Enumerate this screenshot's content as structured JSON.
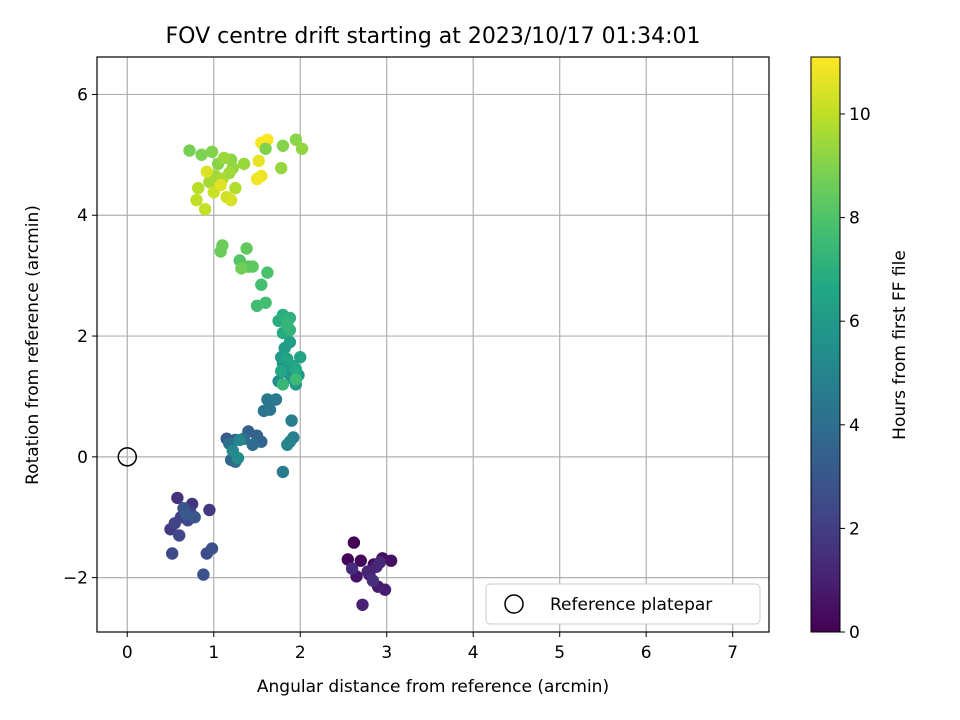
{
  "chart_data": {
    "type": "scatter",
    "title": "FOV centre drift starting at 2023/10/17 01:34:01",
    "xlabel": "Angular distance from reference (arcmin)",
    "ylabel": "Rotation from reference (arcmin)",
    "xlim": [
      -0.35,
      7.42
    ],
    "ylim": [
      -2.9,
      6.62
    ],
    "xticks": [
      0,
      1,
      2,
      3,
      4,
      5,
      6,
      7
    ],
    "xtick_labels": [
      "0",
      "1",
      "2",
      "3",
      "4",
      "5",
      "6",
      "7"
    ],
    "yticks": [
      -2,
      0,
      2,
      4,
      6
    ],
    "ytick_labels": [
      "−2",
      "0",
      "2",
      "4",
      "6"
    ],
    "grid": true,
    "colormap": "viridis",
    "colorbar": {
      "label": "Hours from first FF file",
      "range": [
        0,
        11.1
      ],
      "ticks": [
        0,
        2,
        4,
        6,
        8,
        10
      ],
      "tick_labels": [
        "0",
        "2",
        "4",
        "6",
        "8",
        "10"
      ]
    },
    "legend": {
      "position": "lower-right",
      "entries": [
        "Reference platepar"
      ]
    },
    "reference_point": {
      "x": 0,
      "y": 0,
      "label": "Reference platepar"
    },
    "series": [
      {
        "points": [
          [
            2.62,
            -1.42
          ],
          [
            2.55,
            -1.7
          ],
          [
            2.7,
            -1.72
          ],
          [
            2.85,
            -1.78
          ],
          [
            2.95,
            -1.68
          ],
          [
            3.05,
            -1.72
          ],
          [
            2.65,
            -1.98
          ],
          [
            2.8,
            -1.95
          ],
          [
            2.9,
            -2.15
          ],
          [
            2.98,
            -2.2
          ],
          [
            2.72,
            -2.45
          ],
          [
            2.88,
            -1.82
          ],
          [
            2.78,
            -1.9
          ],
          [
            2.92,
            -1.75
          ],
          [
            2.6,
            -1.85
          ],
          [
            2.84,
            -2.05
          ]
        ],
        "hours": [
          0.0,
          0.1,
          0.2,
          0.3,
          0.4,
          0.5,
          0.6,
          0.7,
          0.8,
          0.9,
          1.0,
          1.1,
          1.2,
          1.3,
          1.4,
          1.5
        ]
      },
      {
        "points": [
          [
            0.58,
            -0.68
          ],
          [
            0.75,
            -0.78
          ],
          [
            0.95,
            -0.88
          ],
          [
            0.5,
            -1.2
          ],
          [
            0.62,
            -1.0
          ],
          [
            0.73,
            -0.92
          ],
          [
            0.55,
            -1.1
          ],
          [
            0.6,
            -1.3
          ],
          [
            0.7,
            -1.05
          ],
          [
            0.52,
            -1.6
          ],
          [
            0.92,
            -1.6
          ],
          [
            0.98,
            -1.52
          ],
          [
            0.88,
            -1.95
          ],
          [
            0.65,
            -0.85
          ],
          [
            0.78,
            -1.0
          ],
          [
            0.68,
            -0.95
          ]
        ],
        "hours": [
          1.6,
          1.7,
          1.8,
          1.9,
          2.0,
          2.1,
          2.2,
          2.3,
          2.4,
          2.5,
          2.6,
          2.7,
          2.8,
          2.9,
          3.0,
          3.1
        ]
      },
      {
        "points": [
          [
            1.15,
            0.3
          ],
          [
            1.25,
            0.28
          ],
          [
            1.4,
            0.42
          ],
          [
            1.5,
            0.35
          ],
          [
            1.55,
            0.25
          ],
          [
            1.2,
            -0.05
          ],
          [
            1.25,
            -0.08
          ],
          [
            1.45,
            0.2
          ],
          [
            1.35,
            0.3
          ],
          [
            1.18,
            0.22
          ],
          [
            1.58,
            0.76
          ],
          [
            1.65,
            0.78
          ],
          [
            1.62,
            0.95
          ],
          [
            1.72,
            0.95
          ],
          [
            1.8,
            -0.25
          ],
          [
            1.9,
            0.6
          ],
          [
            1.92,
            0.32
          ],
          [
            1.88,
            0.25
          ],
          [
            1.85,
            0.2
          ],
          [
            1.3,
            0.28
          ],
          [
            1.22,
            0.1
          ],
          [
            1.28,
            -0.02
          ]
        ],
        "hours": [
          3.2,
          3.3,
          3.4,
          3.5,
          3.6,
          3.7,
          3.8,
          3.9,
          4.0,
          4.1,
          4.2,
          4.3,
          4.4,
          4.5,
          4.6,
          4.7,
          4.8,
          4.9,
          5.0,
          5.1,
          5.2,
          5.3
        ]
      },
      {
        "points": [
          [
            1.75,
            1.25
          ],
          [
            1.8,
            1.55
          ],
          [
            1.85,
            1.4
          ],
          [
            1.9,
            1.3
          ],
          [
            1.95,
            1.2
          ],
          [
            1.98,
            1.35
          ],
          [
            1.78,
            1.65
          ],
          [
            1.82,
            1.8
          ],
          [
            1.88,
            1.9
          ],
          [
            1.92,
            1.5
          ],
          [
            2.0,
            1.65
          ],
          [
            1.85,
            1.62
          ],
          [
            1.78,
            1.42
          ],
          [
            1.95,
            1.45
          ],
          [
            1.8,
            2.05
          ],
          [
            1.75,
            2.25
          ],
          [
            1.8,
            2.35
          ],
          [
            1.88,
            2.3
          ],
          [
            1.88,
            2.1
          ],
          [
            1.85,
            2.2
          ],
          [
            1.8,
            1.2
          ],
          [
            1.95,
            1.28
          ]
        ],
        "hours": [
          5.4,
          5.5,
          5.6,
          5.7,
          5.8,
          5.9,
          6.0,
          6.1,
          6.2,
          6.3,
          6.4,
          6.5,
          6.6,
          6.7,
          6.8,
          6.9,
          7.0,
          7.1,
          7.2,
          7.3,
          7.4,
          7.5
        ]
      },
      {
        "points": [
          [
            1.5,
            2.5
          ],
          [
            1.6,
            2.55
          ],
          [
            1.55,
            2.85
          ],
          [
            1.62,
            3.05
          ],
          [
            1.4,
            3.15
          ],
          [
            1.3,
            3.25
          ],
          [
            1.35,
            3.15
          ],
          [
            1.45,
            3.15
          ],
          [
            1.38,
            3.45
          ],
          [
            1.08,
            3.4
          ],
          [
            1.1,
            3.5
          ],
          [
            1.32,
            3.12
          ]
        ],
        "hours": [
          7.6,
          7.7,
          7.8,
          7.9,
          8.0,
          8.1,
          8.2,
          8.3,
          8.4,
          8.5,
          8.6,
          8.7
        ]
      },
      {
        "points": [
          [
            0.72,
            5.07
          ],
          [
            0.86,
            5.0
          ],
          [
            0.98,
            5.05
          ],
          [
            1.05,
            4.85
          ],
          [
            1.2,
            4.92
          ],
          [
            1.22,
            4.78
          ],
          [
            1.35,
            4.85
          ],
          [
            1.02,
            4.65
          ],
          [
            0.95,
            4.55
          ],
          [
            1.1,
            4.6
          ],
          [
            1.25,
            4.45
          ],
          [
            0.82,
            4.45
          ],
          [
            0.8,
            4.25
          ],
          [
            0.9,
            4.1
          ],
          [
            1.0,
            4.38
          ],
          [
            1.15,
            4.3
          ],
          [
            1.2,
            4.25
          ],
          [
            0.92,
            4.72
          ],
          [
            1.08,
            4.5
          ],
          [
            1.52,
            4.9
          ],
          [
            1.55,
            4.65
          ],
          [
            1.5,
            4.6
          ],
          [
            1.55,
            5.2
          ],
          [
            1.62,
            5.25
          ],
          [
            1.6,
            5.1
          ],
          [
            1.8,
            5.15
          ],
          [
            1.95,
            5.25
          ],
          [
            2.02,
            5.1
          ],
          [
            1.78,
            4.78
          ],
          [
            1.12,
            4.95
          ],
          [
            1.18,
            4.7
          ]
        ],
        "hours": [
          8.8,
          8.9,
          9.0,
          9.1,
          9.2,
          9.3,
          9.4,
          9.5,
          9.6,
          9.7,
          9.8,
          9.9,
          10.0,
          10.1,
          10.2,
          10.3,
          10.4,
          10.5,
          10.6,
          10.7,
          10.8,
          10.9,
          11.0,
          11.1,
          8.95,
          9.05,
          9.15,
          9.25,
          9.35,
          9.45,
          9.55
        ]
      }
    ]
  }
}
